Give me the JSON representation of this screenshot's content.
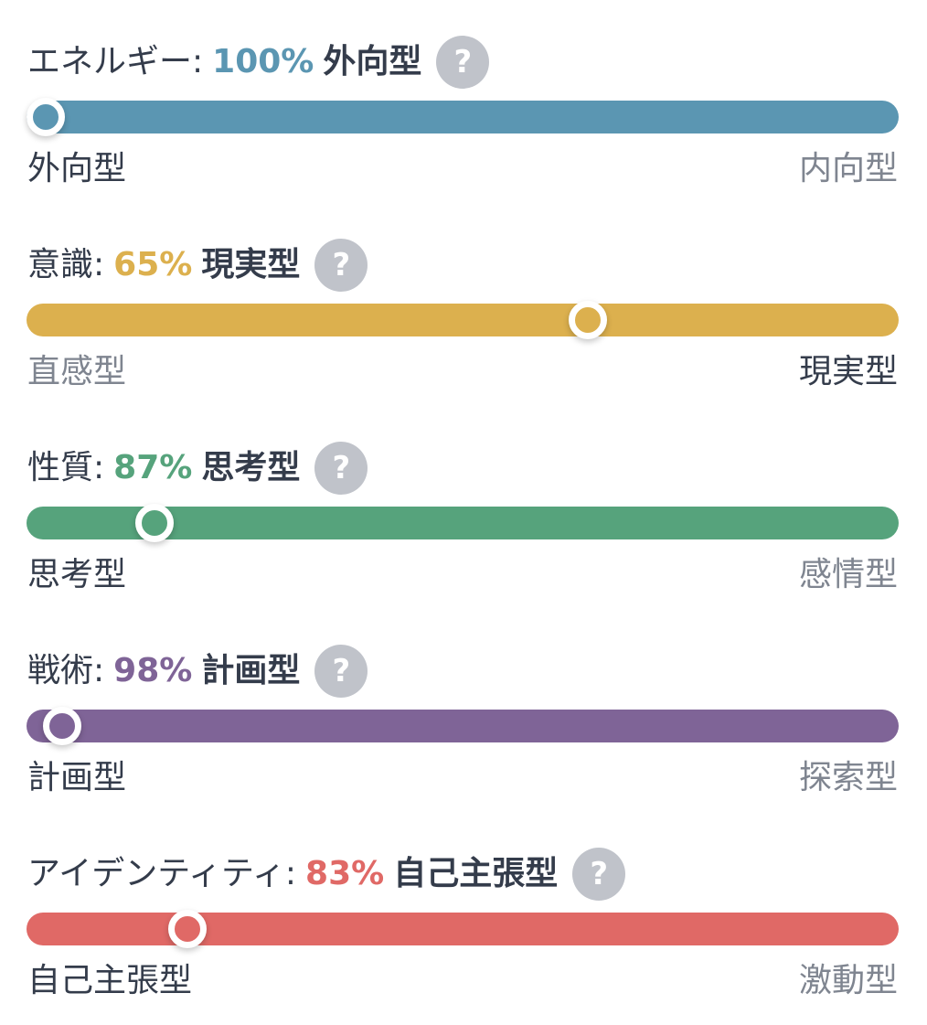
{
  "traits": [
    {
      "label": "エネルギー",
      "percent_text": "100%",
      "type": "外向型",
      "left_pole": "外向型",
      "right_pole": "内向型",
      "active_side": "left",
      "color": "#5b96b2",
      "knob_position_fraction": 0.0
    },
    {
      "label": "意識",
      "percent_text": "65%",
      "type": "現実型",
      "left_pole": "直感型",
      "right_pole": "現実型",
      "active_side": "right",
      "color": "#dcb04e",
      "knob_position_fraction": 0.65
    },
    {
      "label": "性質",
      "percent_text": "87%",
      "type": "思考型",
      "left_pole": "思考型",
      "right_pole": "感情型",
      "active_side": "left",
      "color": "#56a37c",
      "knob_position_fraction": 0.13
    },
    {
      "label": "戦術",
      "percent_text": "98%",
      "type": "計画型",
      "left_pole": "計画型",
      "right_pole": "探索型",
      "active_side": "left",
      "color": "#7f6497",
      "knob_position_fraction": 0.02
    },
    {
      "label": "アイデンティティ",
      "percent_text": "83%",
      "type": "自己主張型",
      "left_pole": "自己主張型",
      "right_pole": "激動型",
      "active_side": "left",
      "color": "#e06966",
      "knob_position_fraction": 0.17
    }
  ],
  "colon": ":",
  "help_glyph": "?",
  "help_icon": "question-mark-circle-icon"
}
